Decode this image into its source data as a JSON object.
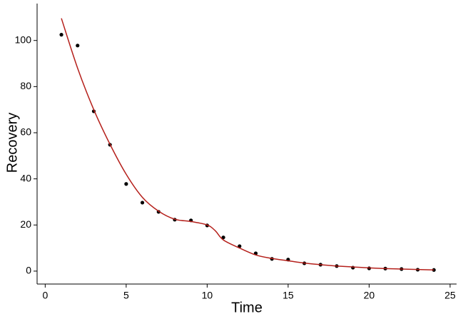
{
  "chart_data": {
    "type": "scatter",
    "x_label": "Time",
    "y_label": "Recovery",
    "xlim": [
      -0.5,
      25.4
    ],
    "ylim": [
      -5.6,
      116
    ],
    "xticks": [
      0,
      5,
      10,
      15,
      20,
      25
    ],
    "yticks": [
      0,
      20,
      40,
      60,
      80,
      100
    ],
    "grid": false,
    "series": [
      {
        "type": "scatter",
        "color": "#000000",
        "x": [
          1,
          2,
          3,
          4,
          5,
          6,
          7,
          8,
          9,
          10,
          11,
          12,
          13,
          14,
          15,
          16,
          17,
          18,
          19,
          20,
          21,
          22,
          23,
          24
        ],
        "values": [
          102.5,
          97.8,
          69.3,
          54.8,
          37.8,
          29.7,
          25.7,
          22.3,
          22.0,
          19.8,
          14.6,
          10.8,
          7.7,
          5.3,
          5.0,
          3.4,
          2.8,
          2.2,
          1.5,
          1.2,
          1.1,
          0.9,
          0.6,
          0.5
        ]
      },
      {
        "type": "line",
        "color": "#b5201b",
        "x": [
          1,
          2,
          3,
          4,
          5,
          6,
          7,
          8,
          9,
          10,
          10.5,
          11,
          12,
          13,
          14,
          15,
          16,
          17,
          18,
          19,
          20,
          21,
          22,
          23,
          24
        ],
        "values": [
          109.6,
          88,
          70,
          55,
          42,
          32,
          26,
          22.5,
          21.5,
          20,
          17.5,
          13.5,
          10,
          7,
          5.5,
          4.5,
          3.5,
          2.8,
          2.2,
          1.8,
          1.4,
          1.1,
          0.9,
          0.7,
          0.5
        ]
      }
    ]
  }
}
